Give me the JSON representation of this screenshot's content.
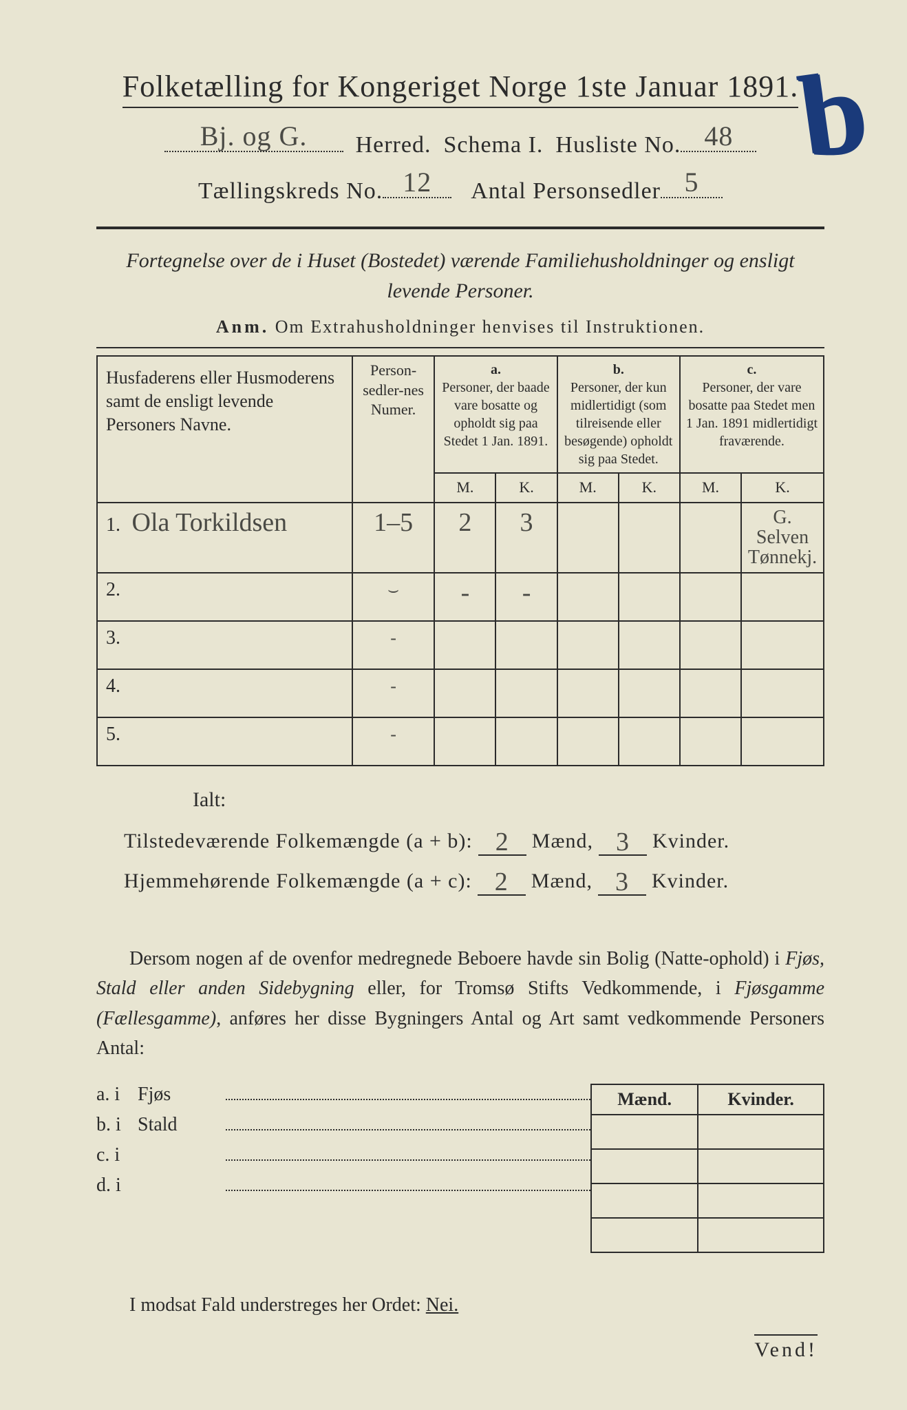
{
  "title": "Folketælling for Kongeriget Norge 1ste Januar 1891.",
  "crayon_mark": "b",
  "line2": {
    "herred_hand": "Bj. og G.",
    "herred_label": "Herred.",
    "schema_label": "Schema I.",
    "husliste_label": "Husliste No.",
    "husliste_hand": "48"
  },
  "line3": {
    "kreds_label": "Tællingskreds No.",
    "kreds_hand": "12",
    "antal_label": "Antal Personsedler",
    "antal_hand": "5"
  },
  "subtitle": "Fortegnelse over de i Huset (Bostedet) værende Familiehusholdninger og ensligt levende Personer.",
  "anm_prefix": "Anm.",
  "anm_text": " Om Extrahusholdninger henvises til Instruktionen.",
  "table": {
    "head_name": "Husfaderens eller Husmoderens samt de ensligt levende Personers Navne.",
    "head_num": "Person-sedler-nes Numer.",
    "col_a_letter": "a.",
    "col_a": "Personer, der baade vare bosatte og opholdt sig paa Stedet 1 Jan. 1891.",
    "col_b_letter": "b.",
    "col_b": "Personer, der kun midlertidigt (som tilreisende eller besøgende) opholdt sig paa Stedet.",
    "col_c_letter": "c.",
    "col_c": "Personer, der vare bosatte paa Stedet men 1 Jan. 1891 midlertidigt fraværende.",
    "M": "M.",
    "K": "K.",
    "rows": [
      {
        "n": "1.",
        "name": "Ola Torkildsen",
        "num": "1–5",
        "aM": "2",
        "aK": "3",
        "bM": "",
        "bK": "",
        "cM": "",
        "cK": "G. Selven Tønnekj."
      },
      {
        "n": "2.",
        "name": "",
        "num": "⌣",
        "aM": "-",
        "aK": "-",
        "bM": "",
        "bK": "",
        "cM": "",
        "cK": ""
      },
      {
        "n": "3.",
        "name": "",
        "num": "-",
        "aM": "",
        "aK": "",
        "bM": "",
        "bK": "",
        "cM": "",
        "cK": ""
      },
      {
        "n": "4.",
        "name": "",
        "num": "-",
        "aM": "",
        "aK": "",
        "bM": "",
        "bK": "",
        "cM": "",
        "cK": ""
      },
      {
        "n": "5.",
        "name": "",
        "num": "-",
        "aM": "",
        "aK": "",
        "bM": "",
        "bK": "",
        "cM": "",
        "cK": ""
      }
    ]
  },
  "ialt": "Ialt:",
  "totals": {
    "row1_label": "Tilstedeværende Folkemængde (a + b):",
    "row2_label": "Hjemmehørende Folkemængde (a + c):",
    "maend": "Mænd,",
    "kvinder": "Kvinder.",
    "r1m": "2",
    "r1k": "3",
    "r2m": "2",
    "r2k": "3"
  },
  "para": {
    "p1": "Dersom nogen af de ovenfor medregnede Beboere havde sin Bolig (Natte-ophold) i ",
    "i1": "Fjøs, Stald eller anden Sidebygning",
    "p2": " eller, for Tromsø Stifts Vedkommende, i ",
    "i2": "Fjøsgamme (Fællesgamme)",
    "p3": ", anføres her disse Bygningers Antal og Art samt vedkommende Personers Antal:"
  },
  "bygn": {
    "a": "a.  i",
    "a2": "Fjøs",
    "b": "b.  i",
    "b2": "Stald",
    "c": "c.  i",
    "c2": "",
    "d": "d.  i",
    "d2": "",
    "M": "Mænd.",
    "K": "Kvinder."
  },
  "nei_text": "I modsat Fald understreges her Ordet: ",
  "nei_word": "Nei.",
  "vend": "Vend!"
}
